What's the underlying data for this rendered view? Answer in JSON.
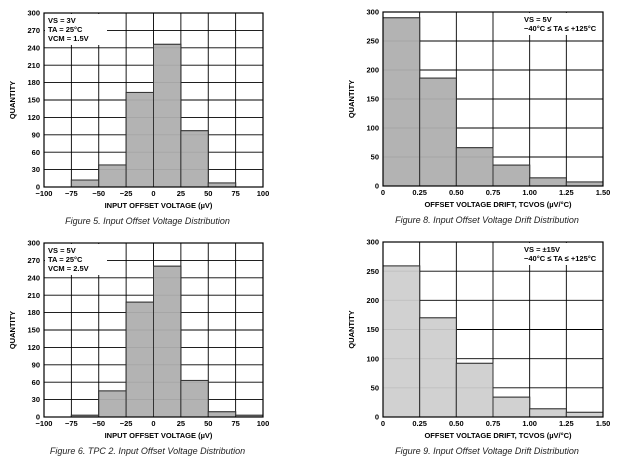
{
  "colors": {
    "bar_dark": "#b3b3b3",
    "bar_light": "#d0d0d0",
    "grid": "#000000",
    "outline": "#333333"
  },
  "chart_data": [
    {
      "type": "bar",
      "title": "Figure 5. Input Offset Voltage Distribution",
      "xlabel": "INPUT OFFSET VOLTAGE (µV)",
      "ylabel": "QUANTITY",
      "bin_edges": [
        -75,
        -50,
        -25,
        0,
        25,
        50,
        75,
        100
      ],
      "values": [
        12,
        38,
        163,
        246,
        97,
        7,
        0
      ],
      "xlim": [
        -100,
        100
      ],
      "ylim": [
        0,
        300
      ],
      "xticks": [
        "−100",
        "−75",
        "−50",
        "−25",
        "0",
        "25",
        "50",
        "75",
        "100"
      ],
      "yticks": [
        "0",
        "30",
        "60",
        "90",
        "120",
        "150",
        "180",
        "210",
        "240",
        "270",
        "300"
      ],
      "annotation": [
        "VS = 3V",
        "TA = 25°C",
        "VCM = 1.5V"
      ],
      "annotation_position": "top-left",
      "grid": true,
      "fill": "dark"
    },
    {
      "type": "bar",
      "title": "Figure 8. Input Offset Voltage Drift Distribution",
      "xlabel": "OFFSET VOLTAGE DRIFT, TCVOS (µV/°C)",
      "ylabel": "QUANTITY",
      "bin_edges": [
        0,
        0.25,
        0.5,
        0.75,
        1.0,
        1.25,
        1.5
      ],
      "values": [
        290,
        186,
        66,
        36,
        14,
        7
      ],
      "xlim": [
        0,
        1.5
      ],
      "ylim": [
        0,
        300
      ],
      "xticks": [
        "0",
        "0.25",
        "0.50",
        "0.75",
        "1.00",
        "1.25",
        "1.50"
      ],
      "yticks": [
        "0",
        "50",
        "100",
        "150",
        "200",
        "250",
        "300"
      ],
      "annotation": [
        "VS = 5V",
        "−40°C ≤ TA ≤ +125°C"
      ],
      "annotation_position": "top-right",
      "grid": true,
      "fill": "dark"
    },
    {
      "type": "bar",
      "title": "Figure 6. TPC 2. Input Offset Voltage Distribution",
      "xlabel": "INPUT OFFSET VOLTAGE (µV)",
      "ylabel": "QUANTITY",
      "bin_edges": [
        -75,
        -50,
        -25,
        0,
        25,
        50,
        75,
        100
      ],
      "values": [
        3,
        45,
        198,
        260,
        63,
        9,
        3
      ],
      "xlim": [
        -100,
        100
      ],
      "ylim": [
        0,
        300
      ],
      "xticks": [
        "−100",
        "−75",
        "−50",
        "−25",
        "0",
        "25",
        "50",
        "75",
        "100"
      ],
      "yticks": [
        "0",
        "30",
        "60",
        "90",
        "120",
        "150",
        "180",
        "210",
        "240",
        "270",
        "300"
      ],
      "annotation": [
        "VS = 5V",
        "TA = 25°C",
        "VCM = 2.5V"
      ],
      "annotation_position": "top-left",
      "grid": true,
      "fill": "dark"
    },
    {
      "type": "bar",
      "title": "Figure 9. Input Offset Voltage Drift Distribution",
      "xlabel": "OFFSET VOLTAGE DRIFT, TCVOS (µV/°C)",
      "ylabel": "QUANTITY",
      "bin_edges": [
        0,
        0.25,
        0.5,
        0.75,
        1.0,
        1.25,
        1.5
      ],
      "values": [
        259,
        170,
        92,
        34,
        14,
        8
      ],
      "xlim": [
        0,
        1.5
      ],
      "ylim": [
        0,
        300
      ],
      "xticks": [
        "0",
        "0.25",
        "0.50",
        "0.75",
        "1.00",
        "1.25",
        "1.50"
      ],
      "yticks": [
        "0",
        "50",
        "100",
        "150",
        "200",
        "250",
        "300"
      ],
      "annotation": [
        "VS = ±15V",
        "−40°C ≤ TA ≤ +125°C"
      ],
      "annotation_position": "top-right",
      "grid": true,
      "fill": "light"
    }
  ]
}
